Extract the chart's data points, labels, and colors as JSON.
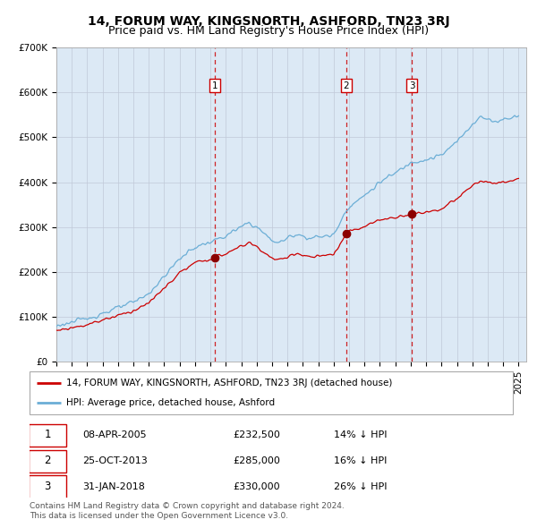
{
  "title": "14, FORUM WAY, KINGSNORTH, ASHFORD, TN23 3RJ",
  "subtitle": "Price paid vs. HM Land Registry's House Price Index (HPI)",
  "ylim": [
    0,
    700000
  ],
  "yticks": [
    0,
    100000,
    200000,
    300000,
    400000,
    500000,
    600000,
    700000
  ],
  "ytick_labels": [
    "£0",
    "£100K",
    "£200K",
    "£300K",
    "£400K",
    "£500K",
    "£600K",
    "£700K"
  ],
  "xlim_start": 1995.0,
  "xlim_end": 2025.5,
  "sales": [
    {
      "num": 1,
      "date": "08-APR-2005",
      "price": 232500,
      "year": 2005.27,
      "label": "08-APR-2005",
      "price_str": "£232,500",
      "hpi_str": "14% ↓ HPI"
    },
    {
      "num": 2,
      "date": "25-OCT-2013",
      "price": 285000,
      "year": 2013.82,
      "label": "25-OCT-2013",
      "price_str": "£285,000",
      "hpi_str": "16% ↓ HPI"
    },
    {
      "num": 3,
      "date": "31-JAN-2018",
      "price": 330000,
      "year": 2018.08,
      "label": "31-JAN-2018",
      "price_str": "£330,000",
      "hpi_str": "26% ↓ HPI"
    }
  ],
  "hpi_line_color": "#6baed6",
  "price_line_color": "#cc0000",
  "dashed_line_color": "#cc0000",
  "plot_bg_color": "#dce9f5",
  "legend_label_price": "14, FORUM WAY, KINGSNORTH, ASHFORD, TN23 3RJ (detached house)",
  "legend_label_hpi": "HPI: Average price, detached house, Ashford",
  "footer_line1": "Contains HM Land Registry data © Crown copyright and database right 2024.",
  "footer_line2": "This data is licensed under the Open Government Licence v3.0.",
  "title_fontsize": 10,
  "subtitle_fontsize": 9,
  "tick_fontsize": 7.5
}
